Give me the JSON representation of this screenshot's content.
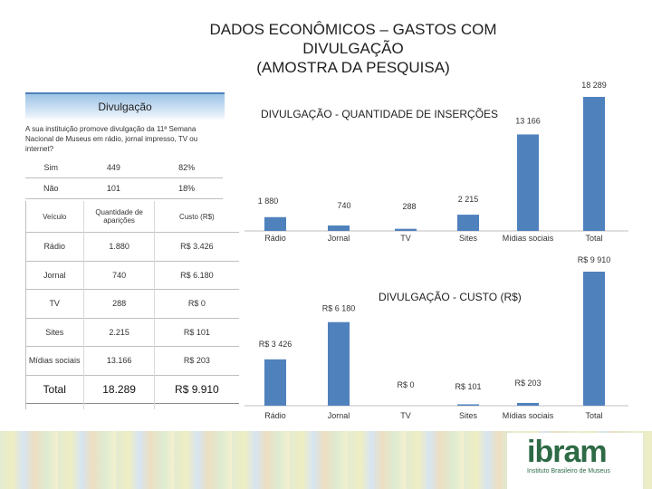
{
  "title": {
    "line1": "DADOS ECONÔMICOS – GASTOS COM",
    "line2": "DIVULGAÇÃO",
    "line3": "(AMOSTRA DA PESQUISA)"
  },
  "panel": {
    "heading": "Divulgação",
    "question": "A sua instituição promove divulgação da 11ª Semana Nacional de Museus em rádio, jornal impresso, TV ou internet?",
    "answers": [
      {
        "label": "Sim",
        "count": "449",
        "pct": "82%"
      },
      {
        "label": "Não",
        "count": "101",
        "pct": "18%"
      }
    ]
  },
  "media_table": {
    "headers": [
      "Veículo",
      "Quantidade de aparições",
      "Custo (R$)"
    ],
    "rows": [
      [
        "Rádio",
        "1.880",
        "R$ 3.426"
      ],
      [
        "Jornal",
        "740",
        "R$ 6.180"
      ],
      [
        "TV",
        "288",
        "R$ 0"
      ],
      [
        "Sites",
        "2.215",
        "R$ 101"
      ],
      [
        "Mídias sociais",
        "13.166",
        "R$ 203"
      ]
    ],
    "total": [
      "Total",
      "18.289",
      "R$ 9.910"
    ]
  },
  "chart_data": [
    {
      "type": "bar",
      "title": "DIVULGAÇÃO - QUANTIDADE DE INSERÇÕES",
      "categories": [
        "Rádio",
        "Jornal",
        "TV",
        "Sites",
        "Mídias sociais",
        "Total"
      ],
      "values": [
        1880,
        740,
        288,
        2215,
        13166,
        18289
      ],
      "data_labels": [
        "1 880",
        "740",
        "288",
        "2 215",
        "13 166",
        "18 289"
      ],
      "color": "#4f81bd"
    },
    {
      "type": "bar",
      "title": "DIVULGAÇÃO - CUSTO (R$)",
      "categories": [
        "Rádio",
        "Jornal",
        "TV",
        "Sites",
        "Mídias sociais",
        "Total"
      ],
      "values": [
        3426,
        6180,
        0,
        101,
        203,
        9910
      ],
      "data_labels": [
        "R$ 3 426",
        "R$ 6 180",
        "R$ 0",
        "R$ 101",
        "R$ 203",
        "R$ 9 910"
      ],
      "color": "#4f81bd"
    }
  ],
  "logo": {
    "word": "ibram",
    "subtitle": "Instituto Brasileiro de Museus"
  }
}
